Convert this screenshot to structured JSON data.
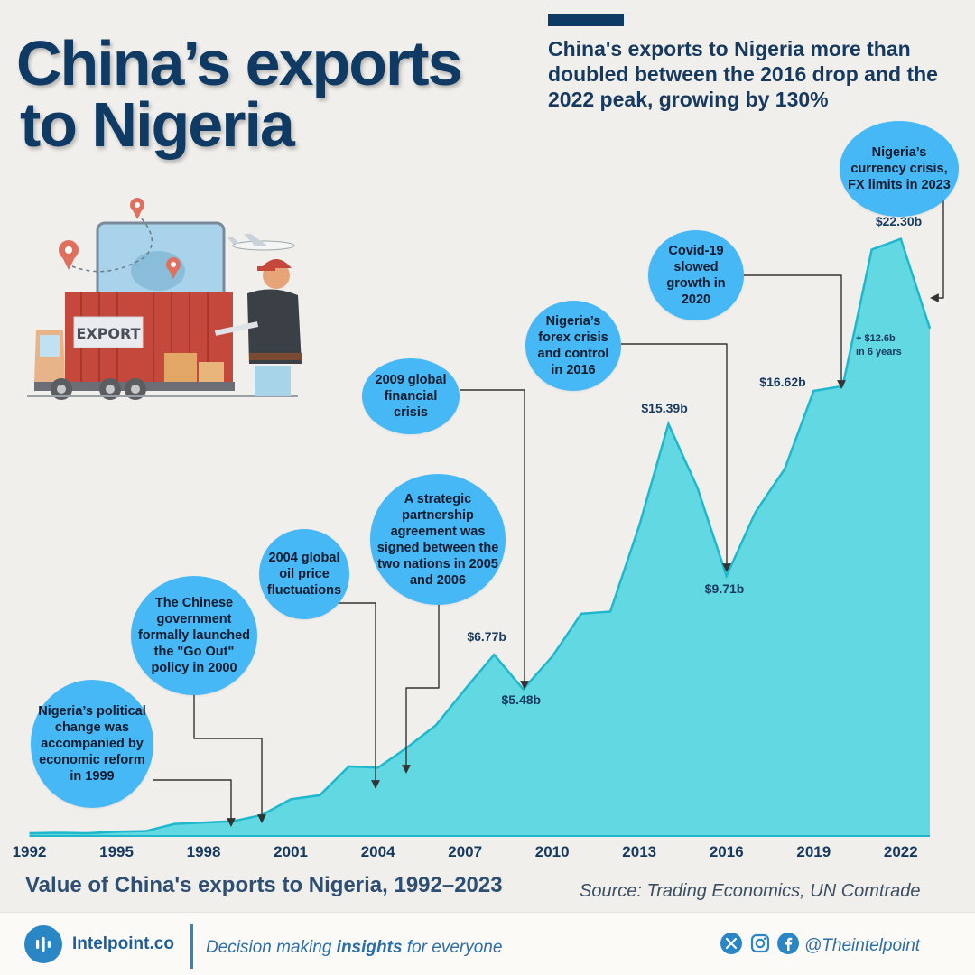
{
  "header": {
    "title_line1": "China’s exports",
    "title_line2": "to Nigeria",
    "subtitle": "China's exports to Nigeria more than doubled between the 2016 drop and the 2022 peak, growing by 130%"
  },
  "chart_data": {
    "type": "area",
    "title": "Value of China's exports to Nigeria, 1992–2023",
    "unit": "USD billions",
    "x": [
      1992,
      1993,
      1994,
      1995,
      1996,
      1997,
      1998,
      1999,
      2000,
      2001,
      2002,
      2003,
      2004,
      2005,
      2006,
      2007,
      2008,
      2009,
      2010,
      2011,
      2012,
      2013,
      2014,
      2015,
      2016,
      2017,
      2018,
      2019,
      2020,
      2021,
      2022,
      2023
    ],
    "values": [
      0.1,
      0.12,
      0.1,
      0.16,
      0.18,
      0.45,
      0.5,
      0.55,
      0.78,
      1.37,
      1.52,
      2.6,
      2.55,
      3.3,
      4.14,
      5.48,
      6.77,
      5.48,
      6.7,
      8.3,
      8.38,
      11.6,
      15.39,
      13.0,
      9.71,
      12.1,
      13.7,
      16.62,
      16.8,
      21.9,
      22.3,
      18.95
    ],
    "x_ticks": [
      "1992",
      "1995",
      "1998",
      "2001",
      "2004",
      "2007",
      "2010",
      "2013",
      "2016",
      "2019",
      "2022"
    ],
    "value_labels": [
      {
        "year": 2008,
        "text": "$6.77b"
      },
      {
        "year": 2009,
        "text": "$5.48b"
      },
      {
        "year": 2014,
        "text": "$15.39b"
      },
      {
        "year": 2016,
        "text": "$9.71b"
      },
      {
        "year": 2019,
        "text": "$16.62b"
      },
      {
        "year": 2022,
        "text": "$22.30b"
      }
    ],
    "growth_note": "+ $12.6b\nin 6 years",
    "source": "Source: Trading Economics, UN Comtrade",
    "colors": {
      "fill": "#56d6e2",
      "line": "#1fb7cc",
      "bubble": "#45b8f5",
      "arrow": "#333333"
    },
    "annotations": [
      {
        "id": "a1999",
        "year": 1999,
        "text": "Nigeria’s political change was accompanied by economic reform in 1999"
      },
      {
        "id": "a2000",
        "year": 2000,
        "text": "The Chinese government formally launched the \"Go Out\" policy in 2000"
      },
      {
        "id": "a2004",
        "year": 2004,
        "text": "2004 global oil price fluctuations"
      },
      {
        "id": "a2005",
        "year": 2005,
        "text": "A strategic partnership agreement was signed between the two nations in 2005 and 2006"
      },
      {
        "id": "a2009",
        "year": 2009,
        "text": "2009 global financial crisis"
      },
      {
        "id": "a2016",
        "year": 2016,
        "text": "Nigeria’s forex crisis and control in 2016"
      },
      {
        "id": "a2020",
        "year": 2020,
        "text": "Covid-19 slowed growth in 2020"
      },
      {
        "id": "a2023",
        "year": 2023,
        "text": "Nigeria’s currency crisis, FX limits in 2023"
      }
    ]
  },
  "illustration": {
    "truck_label": "EXPORT"
  },
  "footer": {
    "brand": "Intelpoint.co",
    "tagline_pre": "Decision making ",
    "tagline_bold": "insights",
    "tagline_post": " for everyone",
    "handle": "@Theintelpoint",
    "social_icons": [
      "x-icon",
      "instagram-icon",
      "facebook-icon"
    ]
  }
}
